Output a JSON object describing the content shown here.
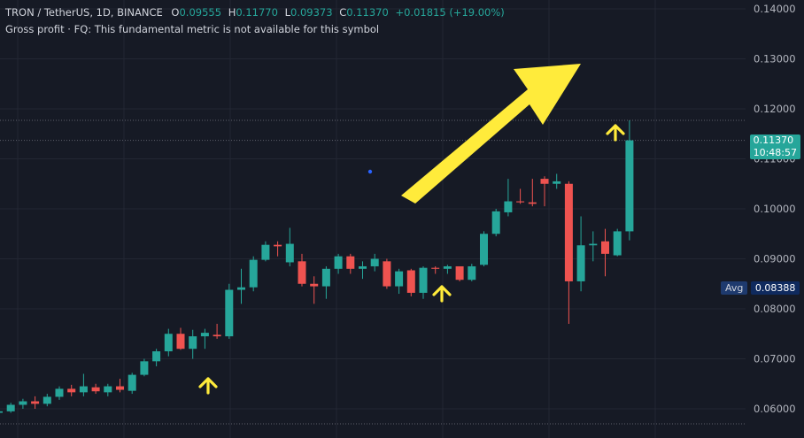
{
  "legend": {
    "symbol": "TRON / TetherUS, 1D, BINANCE",
    "open_label": "O",
    "open": "0.09555",
    "high_label": "H",
    "high": "0.11770",
    "low_label": "L",
    "low": "0.09373",
    "close_label": "C",
    "close": "0.11370",
    "change": "+0.01815 (+19.00%)",
    "indicator": "Gross profit · FQ: This fundamental metric is not available for this symbol"
  },
  "last_price": {
    "value": "0.11370",
    "countdown": "10:48:57"
  },
  "avg": {
    "label": "Avg",
    "value": "0.08388"
  },
  "colors": {
    "background": "#161a25",
    "grid": "#232733",
    "up": "#26a69a",
    "down": "#ef5350",
    "arrow": "#ffeb3b",
    "text": "#b2b5be",
    "avg_bg": "#1e3a6e",
    "dot": "#2962ff"
  },
  "chart_data": {
    "type": "candlestick",
    "ylim": [
      0.0555,
      0.1425
    ],
    "y_ticks": [
      "0.14000",
      "0.13000",
      "0.12000",
      "0.11000",
      "0.10000",
      "0.09000",
      "0.08000",
      "0.07000",
      "0.06000"
    ],
    "hlines": [
      0.1177,
      0.1137,
      0.057
    ],
    "candles": [
      [
        0.0592,
        0.0598,
        0.0583,
        0.0595
      ],
      [
        0.0595,
        0.0612,
        0.0592,
        0.0608
      ],
      [
        0.0608,
        0.062,
        0.06,
        0.0615
      ],
      [
        0.0615,
        0.0625,
        0.06,
        0.061
      ],
      [
        0.061,
        0.063,
        0.0605,
        0.0624
      ],
      [
        0.0624,
        0.0645,
        0.0618,
        0.064
      ],
      [
        0.064,
        0.0648,
        0.0625,
        0.0633
      ],
      [
        0.0633,
        0.067,
        0.0625,
        0.0645
      ],
      [
        0.0643,
        0.065,
        0.063,
        0.0635
      ],
      [
        0.0633,
        0.065,
        0.0625,
        0.0645
      ],
      [
        0.0645,
        0.066,
        0.0633,
        0.0638
      ],
      [
        0.0636,
        0.0672,
        0.063,
        0.0668
      ],
      [
        0.0668,
        0.07,
        0.0665,
        0.0695
      ],
      [
        0.0695,
        0.072,
        0.0685,
        0.0715
      ],
      [
        0.0715,
        0.076,
        0.0705,
        0.075
      ],
      [
        0.075,
        0.0762,
        0.0718,
        0.072
      ],
      [
        0.072,
        0.0758,
        0.07,
        0.0745
      ],
      [
        0.0745,
        0.076,
        0.072,
        0.0752
      ],
      [
        0.0748,
        0.077,
        0.074,
        0.0745
      ],
      [
        0.0745,
        0.085,
        0.074,
        0.0838
      ],
      [
        0.0838,
        0.088,
        0.081,
        0.0843
      ],
      [
        0.0843,
        0.0905,
        0.0835,
        0.0898
      ],
      [
        0.0898,
        0.0935,
        0.0895,
        0.0928
      ],
      [
        0.0928,
        0.0935,
        0.0905,
        0.0925
      ],
      [
        0.0893,
        0.0962,
        0.0885,
        0.093
      ],
      [
        0.0895,
        0.091,
        0.0845,
        0.085
      ],
      [
        0.085,
        0.0865,
        0.081,
        0.0845
      ],
      [
        0.0845,
        0.0885,
        0.082,
        0.088
      ],
      [
        0.088,
        0.091,
        0.087,
        0.0905
      ],
      [
        0.0905,
        0.091,
        0.087,
        0.088
      ],
      [
        0.088,
        0.0895,
        0.086,
        0.0885
      ],
      [
        0.0885,
        0.091,
        0.0875,
        0.09
      ],
      [
        0.0895,
        0.09,
        0.084,
        0.0845
      ],
      [
        0.0845,
        0.088,
        0.083,
        0.0875
      ],
      [
        0.0877,
        0.088,
        0.0825,
        0.0832
      ],
      [
        0.0832,
        0.0885,
        0.082,
        0.0882
      ],
      [
        0.0882,
        0.0885,
        0.087,
        0.088
      ],
      [
        0.088,
        0.0888,
        0.087,
        0.0885
      ],
      [
        0.0885,
        0.0885,
        0.0855,
        0.0858
      ],
      [
        0.0858,
        0.089,
        0.0855,
        0.0885
      ],
      [
        0.0888,
        0.0955,
        0.0885,
        0.095
      ],
      [
        0.095,
        0.1,
        0.0945,
        0.0995
      ],
      [
        0.0993,
        0.106,
        0.0985,
        0.1015
      ],
      [
        0.1015,
        0.104,
        0.101,
        0.1013
      ],
      [
        0.1013,
        0.106,
        0.1005,
        0.101
      ],
      [
        0.106,
        0.1065,
        0.1005,
        0.105
      ],
      [
        0.105,
        0.107,
        0.104,
        0.1055
      ],
      [
        0.105,
        0.1055,
        0.077,
        0.0855
      ],
      [
        0.0855,
        0.0985,
        0.0835,
        0.0927
      ],
      [
        0.0927,
        0.0955,
        0.0895,
        0.093
      ],
      [
        0.0935,
        0.096,
        0.0865,
        0.091
      ],
      [
        0.0907,
        0.096,
        0.0905,
        0.0955
      ],
      [
        0.0955,
        0.1177,
        0.0937,
        0.1137
      ]
    ]
  }
}
